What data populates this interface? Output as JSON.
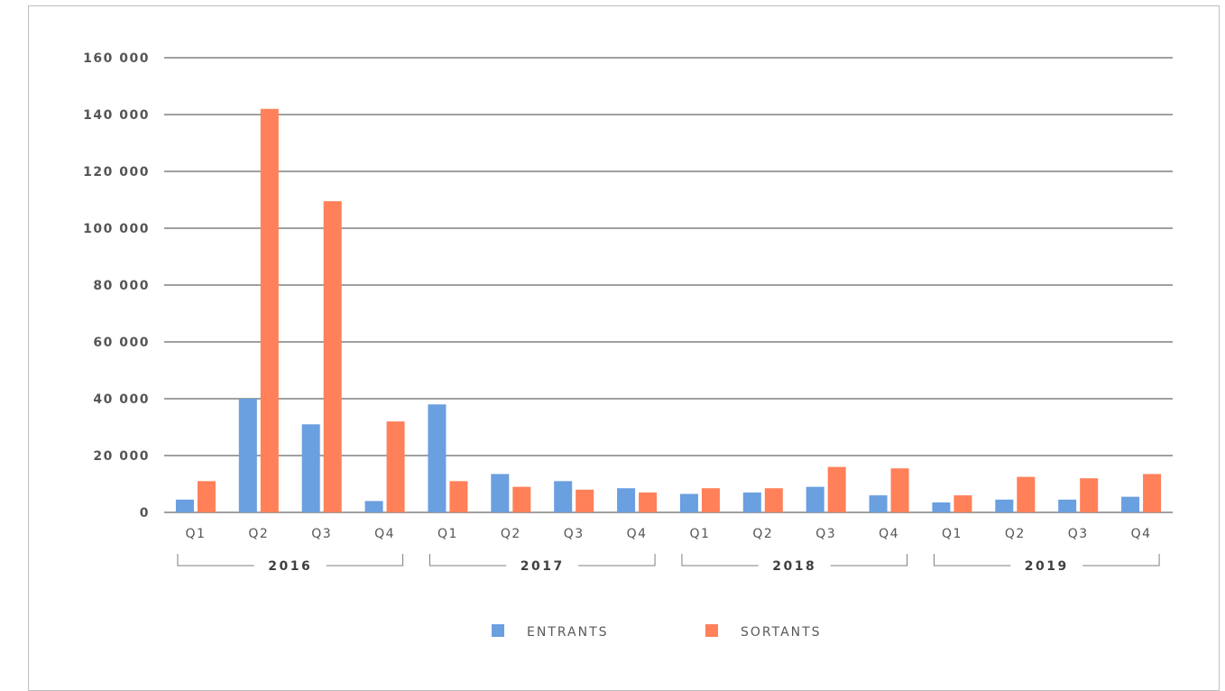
{
  "chart_data": {
    "type": "bar",
    "categories": [
      "Q1",
      "Q2",
      "Q3",
      "Q4",
      "Q1",
      "Q2",
      "Q3",
      "Q4",
      "Q1",
      "Q2",
      "Q3",
      "Q4",
      "Q1",
      "Q2",
      "Q3",
      "Q4"
    ],
    "groups": [
      {
        "label": "2016",
        "span": 4
      },
      {
        "label": "2017",
        "span": 4
      },
      {
        "label": "2018",
        "span": 4
      },
      {
        "label": "2019",
        "span": 4
      }
    ],
    "series": [
      {
        "name": "ENTRANTS",
        "color": "#6a9fe0",
        "values": [
          4500,
          40000,
          31000,
          4000,
          38000,
          13500,
          11000,
          8500,
          6500,
          7000,
          9000,
          6000,
          3500,
          4500,
          4500,
          5500
        ]
      },
      {
        "name": "SORTANTS",
        "color": "#ff8059",
        "values": [
          11000,
          142000,
          109500,
          32000,
          11000,
          9000,
          8000,
          7000,
          8500,
          8500,
          16000,
          15500,
          6000,
          12500,
          12000,
          13500
        ]
      }
    ],
    "ylim": [
      0,
      160000
    ],
    "yticks": [
      0,
      20000,
      40000,
      60000,
      80000,
      100000,
      120000,
      140000,
      160000
    ],
    "ytick_labels": [
      "0",
      "20 000",
      "40 000",
      "60 000",
      "80 000",
      "100 000",
      "120 000",
      "140 000",
      "160 000"
    ],
    "grid": true,
    "legend_position": "bottom-center",
    "title": "",
    "xlabel": "",
    "ylabel": ""
  }
}
